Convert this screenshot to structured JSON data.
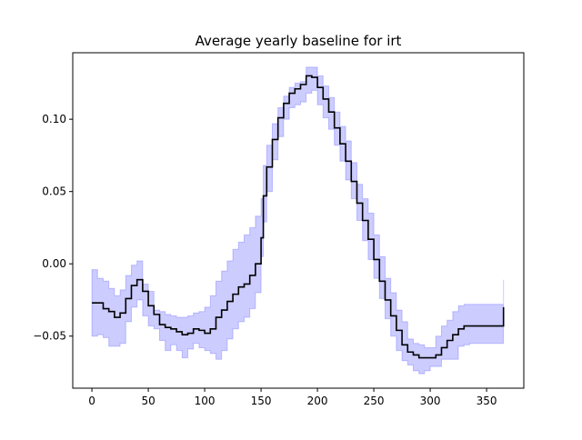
{
  "chart_data": {
    "type": "line",
    "title": "Average yearly baseline for irt",
    "xlabel": "",
    "ylabel": "",
    "xlim": [
      -17,
      383
    ],
    "ylim": [
      -0.086,
      0.146
    ],
    "xticks": [
      0,
      50,
      100,
      150,
      200,
      250,
      300,
      350
    ],
    "yticks": [
      -0.05,
      0.0,
      0.05,
      0.1
    ],
    "xtick_labels": [
      "0",
      "50",
      "100",
      "150",
      "200",
      "250",
      "300",
      "350"
    ],
    "ytick_labels": [
      "−0.05",
      "0.00",
      "0.05",
      "0.10"
    ],
    "grid": false,
    "legend": "none",
    "series": [
      {
        "role": "mean",
        "color": "#000000",
        "x": [
          0,
          5,
          10,
          15,
          20,
          25,
          30,
          35,
          40,
          45,
          50,
          55,
          60,
          65,
          70,
          75,
          80,
          85,
          90,
          95,
          100,
          105,
          110,
          115,
          120,
          125,
          130,
          135,
          140,
          145,
          150,
          152,
          155,
          160,
          165,
          170,
          175,
          180,
          185,
          190,
          195,
          200,
          205,
          210,
          215,
          220,
          225,
          230,
          235,
          240,
          245,
          250,
          255,
          260,
          265,
          270,
          275,
          280,
          285,
          290,
          295,
          300,
          305,
          310,
          315,
          320,
          325,
          330,
          335,
          340,
          345,
          350,
          355,
          360,
          365
        ],
        "y": [
          -0.027,
          -0.027,
          -0.031,
          -0.033,
          -0.037,
          -0.034,
          -0.024,
          -0.015,
          -0.011,
          -0.019,
          -0.029,
          -0.035,
          -0.042,
          -0.044,
          -0.045,
          -0.047,
          -0.049,
          -0.048,
          -0.045,
          -0.046,
          -0.048,
          -0.045,
          -0.037,
          -0.032,
          -0.026,
          -0.021,
          -0.016,
          -0.014,
          -0.008,
          0.0,
          0.018,
          0.047,
          0.067,
          0.086,
          0.101,
          0.111,
          0.118,
          0.121,
          0.124,
          0.13,
          0.129,
          0.122,
          0.114,
          0.105,
          0.094,
          0.083,
          0.071,
          0.057,
          0.042,
          0.03,
          0.017,
          0.003,
          -0.012,
          -0.025,
          -0.036,
          -0.046,
          -0.056,
          -0.061,
          -0.063,
          -0.065,
          -0.065,
          -0.065,
          -0.063,
          -0.058,
          -0.053,
          -0.049,
          -0.045,
          -0.043,
          -0.043,
          -0.043,
          -0.043,
          -0.043,
          -0.043,
          -0.043,
          -0.03
        ]
      },
      {
        "role": "band",
        "color": "#0000ff",
        "fill_opacity": 0.2,
        "x": [
          0,
          5,
          10,
          15,
          20,
          25,
          30,
          35,
          40,
          45,
          50,
          55,
          60,
          65,
          70,
          75,
          80,
          85,
          90,
          95,
          100,
          105,
          110,
          115,
          120,
          125,
          130,
          135,
          140,
          145,
          150,
          152,
          155,
          160,
          165,
          170,
          175,
          180,
          185,
          190,
          195,
          200,
          205,
          210,
          215,
          220,
          225,
          230,
          235,
          240,
          245,
          250,
          255,
          260,
          265,
          270,
          275,
          280,
          285,
          290,
          295,
          300,
          305,
          310,
          315,
          320,
          325,
          330,
          335,
          340,
          345,
          350,
          355,
          360,
          365
        ],
        "upper": [
          -0.004,
          -0.01,
          -0.012,
          -0.017,
          -0.022,
          -0.018,
          -0.008,
          -0.001,
          0.002,
          -0.014,
          -0.019,
          -0.032,
          -0.033,
          -0.035,
          -0.036,
          -0.037,
          -0.037,
          -0.036,
          -0.034,
          -0.033,
          -0.03,
          -0.022,
          -0.012,
          -0.005,
          0.002,
          0.01,
          0.015,
          0.02,
          0.025,
          0.033,
          0.045,
          0.068,
          0.082,
          0.097,
          0.108,
          0.116,
          0.122,
          0.125,
          0.126,
          0.136,
          0.136,
          0.13,
          0.123,
          0.115,
          0.105,
          0.095,
          0.085,
          0.07,
          0.055,
          0.045,
          0.035,
          0.02,
          0.005,
          -0.01,
          -0.02,
          -0.032,
          -0.04,
          -0.052,
          -0.055,
          -0.056,
          -0.058,
          -0.058,
          -0.05,
          -0.043,
          -0.039,
          -0.033,
          -0.029,
          -0.028,
          -0.028,
          -0.028,
          -0.028,
          -0.028,
          -0.028,
          -0.028,
          -0.011
        ],
        "lower": [
          -0.05,
          -0.049,
          -0.051,
          -0.057,
          -0.057,
          -0.055,
          -0.04,
          -0.03,
          -0.025,
          -0.036,
          -0.043,
          -0.045,
          -0.053,
          -0.06,
          -0.056,
          -0.06,
          -0.065,
          -0.059,
          -0.055,
          -0.058,
          -0.06,
          -0.062,
          -0.066,
          -0.06,
          -0.052,
          -0.045,
          -0.04,
          -0.037,
          -0.031,
          -0.02,
          0.005,
          0.029,
          0.05,
          0.072,
          0.088,
          0.1,
          0.108,
          0.11,
          0.112,
          0.118,
          0.12,
          0.11,
          0.101,
          0.093,
          0.082,
          0.071,
          0.058,
          0.045,
          0.03,
          0.016,
          0.003,
          -0.01,
          -0.024,
          -0.038,
          -0.05,
          -0.06,
          -0.067,
          -0.07,
          -0.074,
          -0.076,
          -0.074,
          -0.071,
          -0.071,
          -0.066,
          -0.066,
          -0.066,
          -0.057,
          -0.056,
          -0.055,
          -0.055,
          -0.055,
          -0.055,
          -0.055,
          -0.055,
          -0.05
        ]
      }
    ]
  }
}
